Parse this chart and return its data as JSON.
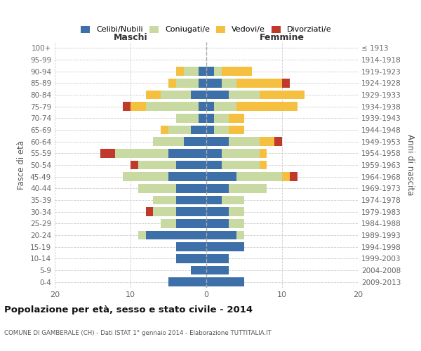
{
  "age_groups": [
    "100+",
    "95-99",
    "90-94",
    "85-89",
    "80-84",
    "75-79",
    "70-74",
    "65-69",
    "60-64",
    "55-59",
    "50-54",
    "45-49",
    "40-44",
    "35-39",
    "30-34",
    "25-29",
    "20-24",
    "15-19",
    "10-14",
    "5-9",
    "0-4"
  ],
  "birth_years": [
    "≤ 1913",
    "1914-1918",
    "1919-1923",
    "1924-1928",
    "1929-1933",
    "1934-1938",
    "1939-1943",
    "1944-1948",
    "1949-1953",
    "1954-1958",
    "1959-1963",
    "1964-1968",
    "1969-1973",
    "1974-1978",
    "1979-1983",
    "1984-1988",
    "1989-1993",
    "1994-1998",
    "1999-2003",
    "2004-2008",
    "2009-2013"
  ],
  "maschi": {
    "celibi": [
      0,
      0,
      1,
      1,
      2,
      1,
      1,
      2,
      3,
      5,
      4,
      5,
      4,
      4,
      4,
      4,
      8,
      4,
      4,
      2,
      5
    ],
    "coniugati": [
      0,
      0,
      2,
      3,
      4,
      7,
      3,
      3,
      4,
      7,
      5,
      6,
      5,
      3,
      3,
      2,
      1,
      0,
      0,
      0,
      0
    ],
    "vedovi": [
      0,
      0,
      1,
      1,
      2,
      2,
      0,
      1,
      0,
      0,
      0,
      0,
      0,
      0,
      0,
      0,
      0,
      0,
      0,
      0,
      0
    ],
    "divorziati": [
      0,
      0,
      0,
      0,
      0,
      1,
      0,
      0,
      0,
      2,
      1,
      0,
      0,
      0,
      1,
      0,
      0,
      0,
      0,
      0,
      0
    ]
  },
  "femmine": {
    "nubili": [
      0,
      0,
      1,
      2,
      3,
      1,
      1,
      1,
      3,
      2,
      2,
      4,
      3,
      2,
      3,
      3,
      4,
      5,
      3,
      3,
      5
    ],
    "coniugate": [
      0,
      0,
      1,
      2,
      4,
      3,
      2,
      2,
      4,
      5,
      5,
      6,
      5,
      3,
      2,
      2,
      1,
      0,
      0,
      0,
      0
    ],
    "vedove": [
      0,
      0,
      4,
      6,
      6,
      8,
      2,
      2,
      2,
      1,
      1,
      1,
      0,
      0,
      0,
      0,
      0,
      0,
      0,
      0,
      0
    ],
    "divorziate": [
      0,
      0,
      0,
      1,
      0,
      0,
      0,
      0,
      1,
      0,
      0,
      1,
      0,
      0,
      0,
      0,
      0,
      0,
      0,
      0,
      0
    ]
  },
  "colors": {
    "celibi_nubili": "#3d6fa8",
    "coniugati": "#c8d9a2",
    "vedovi": "#f5c040",
    "divorziati": "#c0392b"
  },
  "xlim": 20,
  "title": "Popolazione per età, sesso e stato civile - 2014",
  "subtitle": "COMUNE DI GAMBERALE (CH) - Dati ISTAT 1° gennaio 2014 - Elaborazione TUTTITALIA.IT",
  "ylabel": "Fasce di età",
  "ylabel_right": "Anni di nascita",
  "xlabel_left": "Maschi",
  "xlabel_right": "Femmine"
}
